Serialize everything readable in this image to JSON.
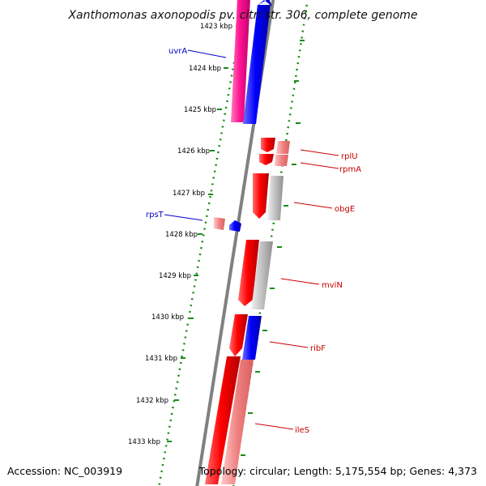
{
  "title": "Xanthomonas axonopodis pv. citri str. 306, complete genome",
  "footer": {
    "accession": "Accession: NC_003919",
    "topology": "Topology: circular; Length: 5,175,554 bp; Genes: 4,373"
  },
  "colors": {
    "backbone": "#808080",
    "tick_dots": "#1a8a1a",
    "plus_label": "#0000cc",
    "minus_label": "#cc0000",
    "gene_red": "#ff0000",
    "gene_light_red": "#f08080",
    "gene_blue": "#0000ff",
    "gene_magenta": "#ff1493",
    "gene_gray": "#c0c0c0"
  },
  "kbp_labels": [
    "1423 kbp",
    "1424 kbp",
    "1425 kbp",
    "1426 kbp",
    "1427 kbp",
    "1428 kbp",
    "1429 kbp",
    "1430 kbp",
    "1431 kbp",
    "1432 kbp",
    "1433 kbp"
  ],
  "genes": [
    {
      "name": "uvrA",
      "strand": "+"
    },
    {
      "name": "rplU",
      "strand": "-"
    },
    {
      "name": "rpmA",
      "strand": "-"
    },
    {
      "name": "obgE",
      "strand": "-"
    },
    {
      "name": "rpsT",
      "strand": "+"
    },
    {
      "name": "mviN",
      "strand": "-"
    },
    {
      "name": "ribF",
      "strand": "-"
    },
    {
      "name": "ileS",
      "strand": "-"
    }
  ]
}
